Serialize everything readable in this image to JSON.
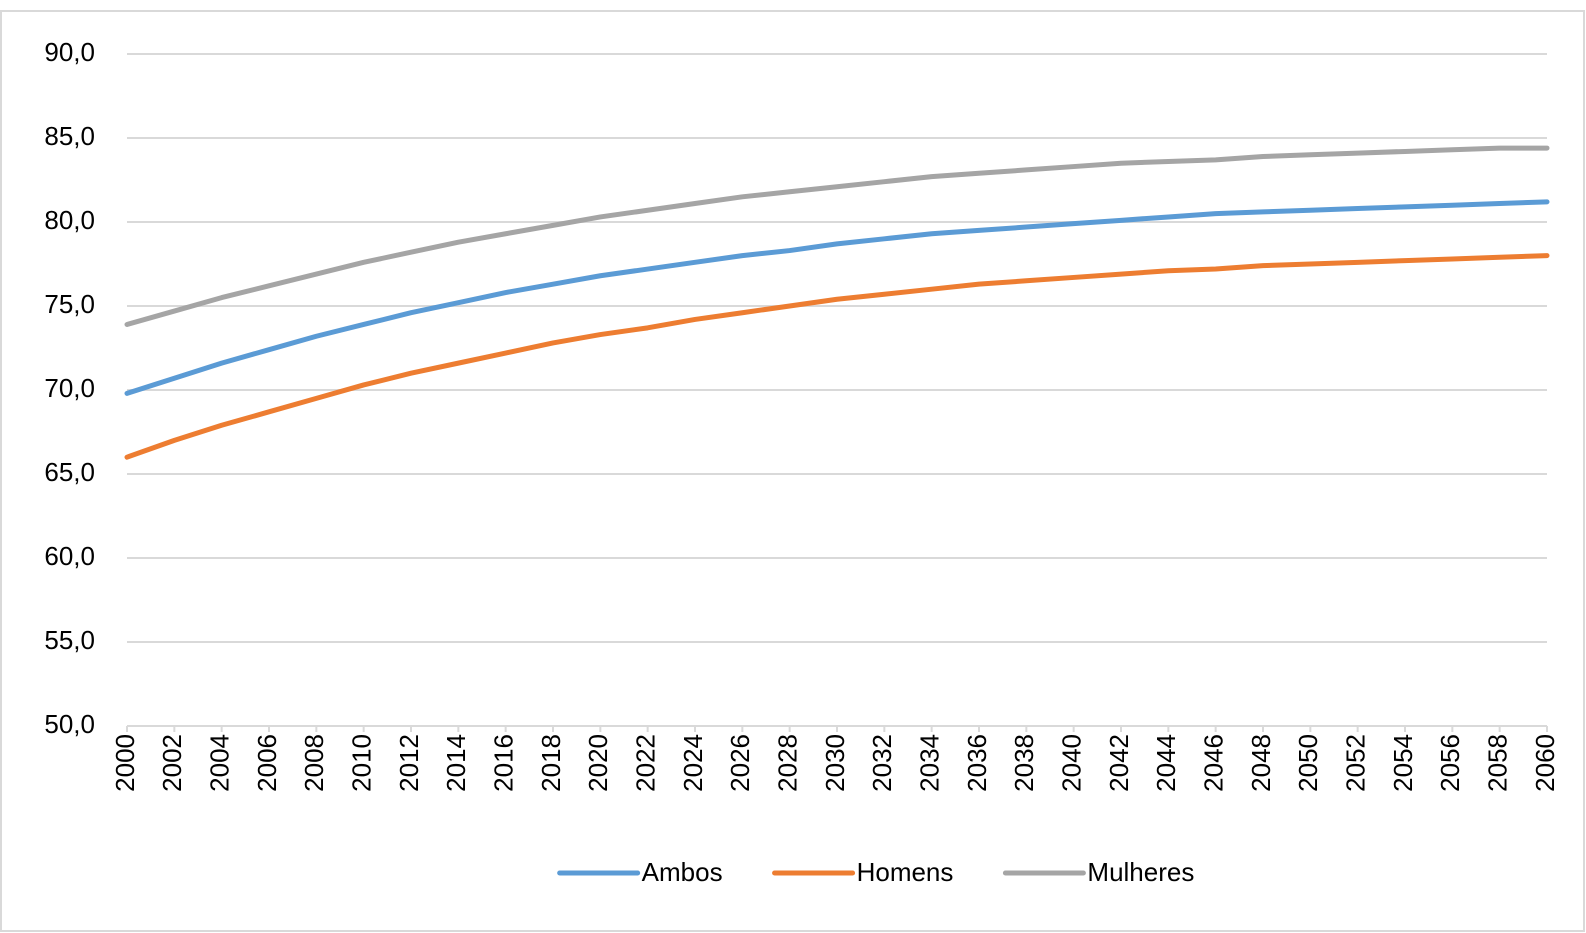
{
  "chart_data": {
    "type": "line",
    "x": [
      2000,
      2002,
      2004,
      2006,
      2008,
      2010,
      2012,
      2014,
      2016,
      2018,
      2020,
      2022,
      2024,
      2026,
      2028,
      2030,
      2032,
      2034,
      2036,
      2038,
      2040,
      2042,
      2044,
      2046,
      2048,
      2050,
      2052,
      2054,
      2056,
      2058,
      2060
    ],
    "series": [
      {
        "name": "Ambos",
        "color": "#5b9bd5",
        "values": [
          69.8,
          70.7,
          71.6,
          72.4,
          73.2,
          73.9,
          74.6,
          75.2,
          75.8,
          76.3,
          76.8,
          77.2,
          77.6,
          78.0,
          78.3,
          78.7,
          79.0,
          79.3,
          79.5,
          79.7,
          79.9,
          80.1,
          80.3,
          80.5,
          80.6,
          80.7,
          80.8,
          80.9,
          81.0,
          81.1,
          81.2
        ]
      },
      {
        "name": "Homens",
        "color": "#ed7d31",
        "values": [
          66.0,
          67.0,
          67.9,
          68.7,
          69.5,
          70.3,
          71.0,
          71.6,
          72.2,
          72.8,
          73.3,
          73.7,
          74.2,
          74.6,
          75.0,
          75.4,
          75.7,
          76.0,
          76.3,
          76.5,
          76.7,
          76.9,
          77.1,
          77.2,
          77.4,
          77.5,
          77.6,
          77.7,
          77.8,
          77.9,
          78.0
        ]
      },
      {
        "name": "Mulheres",
        "color": "#a5a5a5",
        "values": [
          73.9,
          74.7,
          75.5,
          76.2,
          76.9,
          77.6,
          78.2,
          78.8,
          79.3,
          79.8,
          80.3,
          80.7,
          81.1,
          81.5,
          81.8,
          82.1,
          82.4,
          82.7,
          82.9,
          83.1,
          83.3,
          83.5,
          83.6,
          83.7,
          83.9,
          84.0,
          84.1,
          84.2,
          84.3,
          84.4,
          84.4
        ]
      }
    ],
    "xlim": [
      2000,
      2060
    ],
    "xticks": [
      2000,
      2002,
      2004,
      2006,
      2008,
      2010,
      2012,
      2014,
      2016,
      2018,
      2020,
      2022,
      2024,
      2026,
      2028,
      2030,
      2032,
      2034,
      2036,
      2038,
      2040,
      2042,
      2044,
      2046,
      2048,
      2050,
      2052,
      2054,
      2056,
      2058,
      2060
    ],
    "ylim": [
      50,
      90
    ],
    "yticks": [
      {
        "value": 50,
        "label": "50,0"
      },
      {
        "value": 55,
        "label": "55,0"
      },
      {
        "value": 60,
        "label": "60,0"
      },
      {
        "value": 65,
        "label": "65,0"
      },
      {
        "value": 70,
        "label": "70,0"
      },
      {
        "value": 75,
        "label": "75,0"
      },
      {
        "value": 80,
        "label": "80,0"
      },
      {
        "value": 85,
        "label": "85,0"
      },
      {
        "value": 90,
        "label": "90,0"
      }
    ],
    "grid": true,
    "legend": "bottom"
  }
}
